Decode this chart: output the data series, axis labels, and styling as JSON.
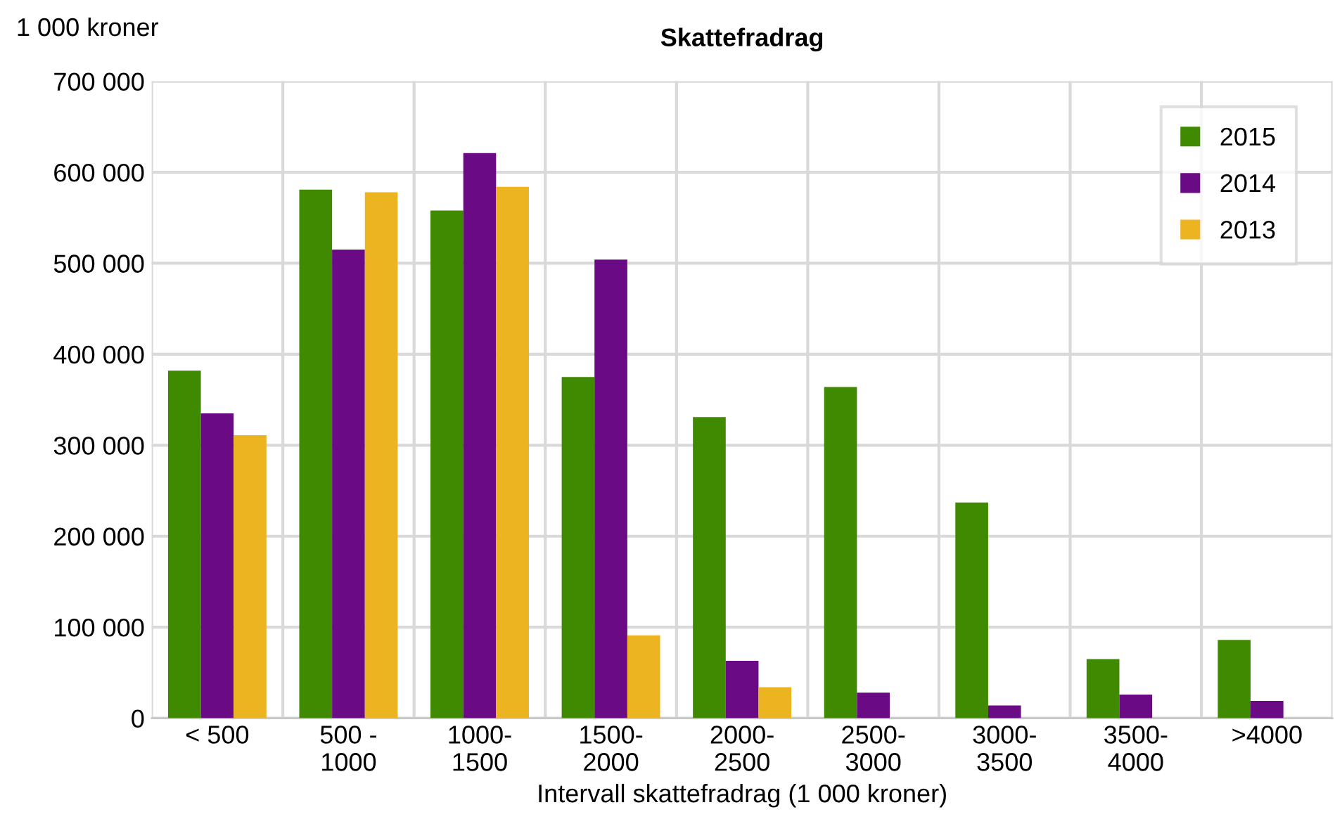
{
  "chart_data": {
    "type": "bar",
    "title": "Skattefradrag",
    "ylabel": "1 000 kroner",
    "xlabel": "Intervall skattefradrag (1 000 kroner)",
    "categories": [
      "< 500",
      "500 -\n1000",
      "1000-\n1500",
      "1500-\n2000",
      "2000-\n2500",
      "2500-\n3000",
      "3000-\n3500",
      "3500-\n4000",
      ">4000"
    ],
    "series": [
      {
        "name": "2015",
        "color": "#3f8a00",
        "values": [
          382000,
          581000,
          558000,
          375000,
          331000,
          364000,
          237000,
          65000,
          86000
        ]
      },
      {
        "name": "2014",
        "color": "#6a0a84",
        "values": [
          335000,
          515000,
          621000,
          504000,
          63000,
          28000,
          14000,
          26000,
          19000
        ]
      },
      {
        "name": "2013",
        "color": "#ecb420",
        "values": [
          311000,
          578000,
          584000,
          91000,
          34000,
          null,
          null,
          null,
          null
        ]
      }
    ],
    "ylim": [
      0,
      700000
    ],
    "yticks": [
      {
        "value": 0,
        "label": "0"
      },
      {
        "value": 100000,
        "label": "100 000"
      },
      {
        "value": 200000,
        "label": "200 000"
      },
      {
        "value": 300000,
        "label": "300 000"
      },
      {
        "value": 400000,
        "label": "400 000"
      },
      {
        "value": 500000,
        "label": "500 000"
      },
      {
        "value": 600000,
        "label": "600 000"
      },
      {
        "value": 700000,
        "label": "700 000"
      }
    ],
    "grid": true,
    "legend": "top right"
  }
}
